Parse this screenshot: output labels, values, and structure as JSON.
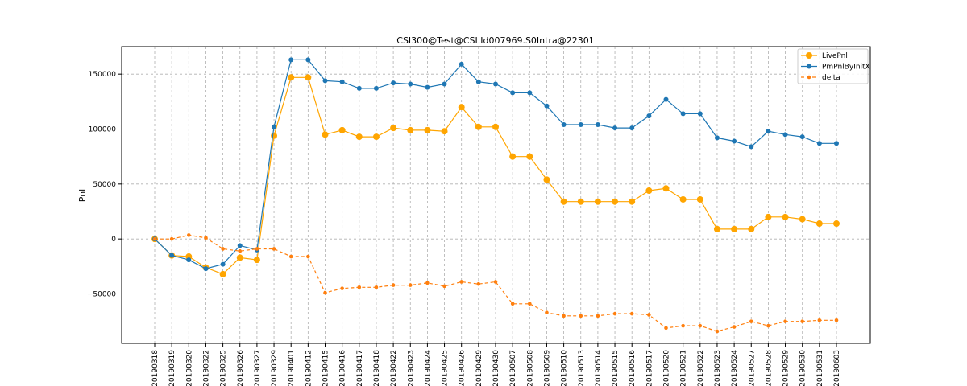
{
  "chart_data": {
    "type": "line",
    "title": "CSI300@Test@CSI.Id007969.S0Intra@22301",
    "xlabel": "",
    "ylabel": "Pnl",
    "ylim": [
      -95000,
      175000
    ],
    "yticks": [
      -50000,
      0,
      50000,
      100000,
      150000
    ],
    "ytick_labels": [
      "−50000",
      "0",
      "50000",
      "100000",
      "150000"
    ],
    "grid": true,
    "legend_position": "top-right",
    "categories": [
      "20190318",
      "20190319",
      "20190320",
      "20190322",
      "20190325",
      "20190326",
      "20190327",
      "20190329",
      "20190401",
      "20190412",
      "20190415",
      "20190416",
      "20190417",
      "20190418",
      "20190422",
      "20190423",
      "20190424",
      "20190425",
      "20190426",
      "20190429",
      "20190430",
      "20190507",
      "20190508",
      "20190509",
      "20190510",
      "20190513",
      "20190514",
      "20190515",
      "20190516",
      "20190517",
      "20190520",
      "20190521",
      "20190522",
      "20190523",
      "20190524",
      "20190527",
      "20190528",
      "20190529",
      "20190530",
      "20190531",
      "20190603"
    ],
    "series": [
      {
        "name": "LivePnl",
        "color": "#ffa500",
        "style": "solid",
        "marker": "large-circle",
        "values": [
          0,
          -15000,
          -16000,
          -26000,
          -32000,
          -17000,
          -19000,
          94000,
          147000,
          147000,
          95000,
          99000,
          93000,
          93000,
          101000,
          99000,
          99000,
          98000,
          120000,
          102000,
          102000,
          75000,
          75000,
          54000,
          34000,
          34000,
          34000,
          34000,
          34000,
          44000,
          46000,
          36000,
          36000,
          9000,
          9000,
          9000,
          20000,
          20000,
          18000,
          14000,
          14000
        ]
      },
      {
        "name": "PmPnlByInitX",
        "color": "#1f77b4",
        "style": "solid",
        "marker": "circle",
        "values": [
          0,
          -15000,
          -19000,
          -27000,
          -23000,
          -6000,
          -10000,
          102000,
          163000,
          163000,
          144000,
          143000,
          137000,
          137000,
          142000,
          141000,
          138000,
          141000,
          159000,
          143000,
          141000,
          133000,
          133000,
          121000,
          104000,
          104000,
          104000,
          101000,
          101000,
          112000,
          127000,
          114000,
          114000,
          92000,
          89000,
          84000,
          98000,
          95000,
          93000,
          87000,
          87000
        ]
      },
      {
        "name": "delta",
        "color": "#ff7f0e",
        "style": "dashed",
        "marker": "small-circle",
        "values": [
          0,
          0,
          3500,
          1000,
          -9000,
          -11000,
          -9000,
          -9000,
          -16000,
          -16000,
          -49000,
          -45000,
          -44000,
          -44000,
          -42000,
          -42000,
          -40000,
          -43000,
          -39000,
          -41000,
          -39000,
          -59000,
          -59000,
          -67000,
          -70000,
          -70000,
          -70000,
          -68000,
          -68000,
          -69000,
          -81000,
          -79000,
          -79000,
          -84000,
          -80000,
          -75000,
          -79000,
          -75000,
          -75000,
          -74000,
          -74000
        ]
      }
    ]
  }
}
